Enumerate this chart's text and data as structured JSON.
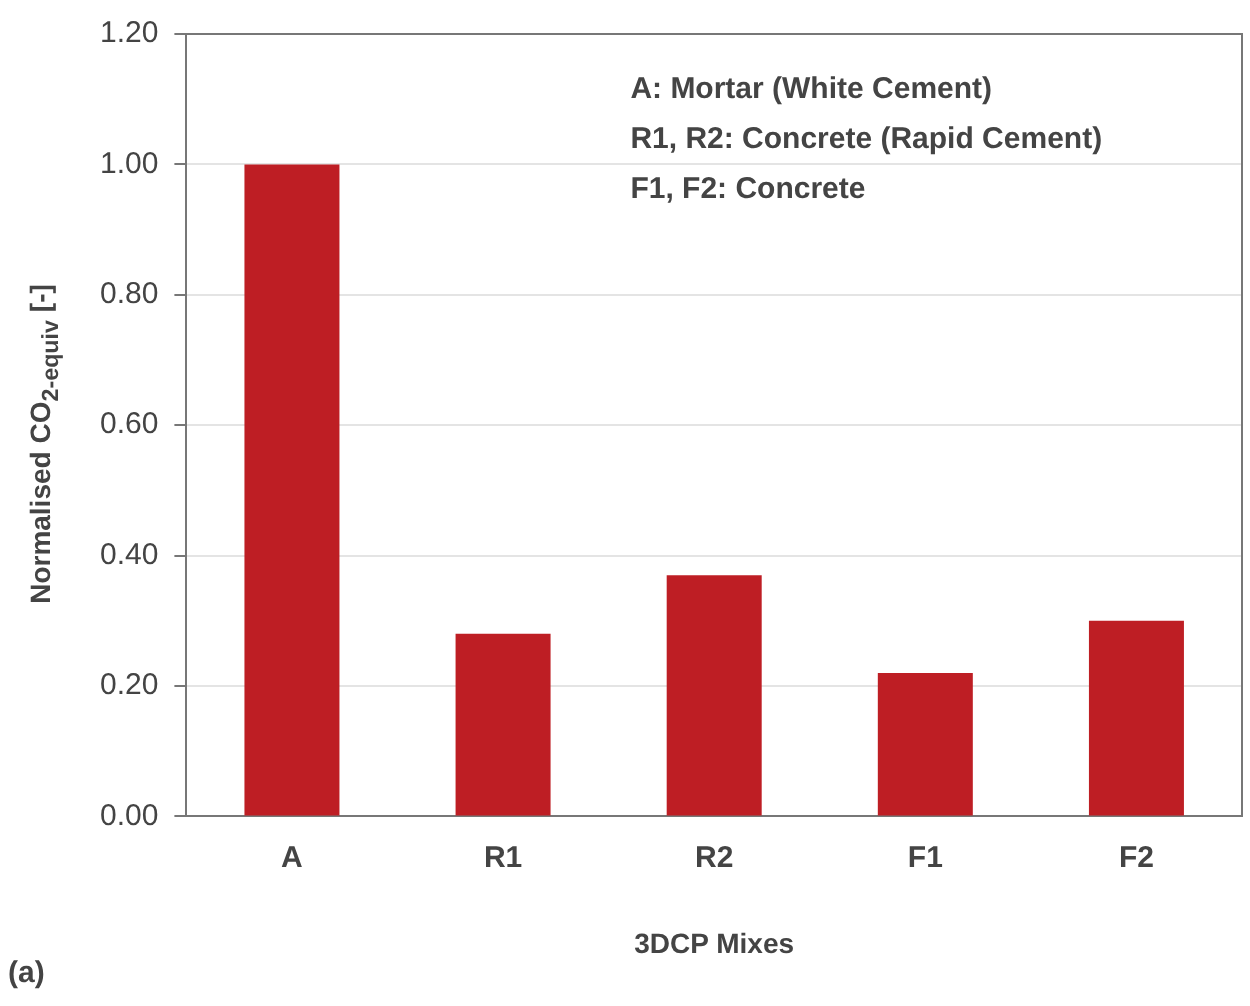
{
  "chart_data": {
    "type": "bar",
    "categories": [
      "A",
      "R1",
      "R2",
      "F1",
      "F2"
    ],
    "values": [
      1.0,
      0.28,
      0.37,
      0.22,
      0.3
    ],
    "color": "#be1e24",
    "xlabel": "3DCP Mixes",
    "ylabel": "Normalised CO$_{2-equiv}$ [-]",
    "ylim": [
      0,
      1.2
    ],
    "yticks": [
      {
        "value": 0,
        "label": "0.00"
      },
      {
        "value": 0.2,
        "label": "0.20"
      },
      {
        "value": 0.4,
        "label": "0.40"
      },
      {
        "value": 0.6,
        "label": "0.60"
      },
      {
        "value": 0.8,
        "label": "0.80"
      },
      {
        "value": 1.0,
        "label": "1.00"
      },
      {
        "value": 1.2,
        "label": "1.20"
      }
    ],
    "grid": "y",
    "annotations": [
      "A: Mortar (White Cement)",
      "R1, R2: Concrete (Rapid Cement)",
      "F1, F2: Concrete",
      "(a)"
    ]
  }
}
